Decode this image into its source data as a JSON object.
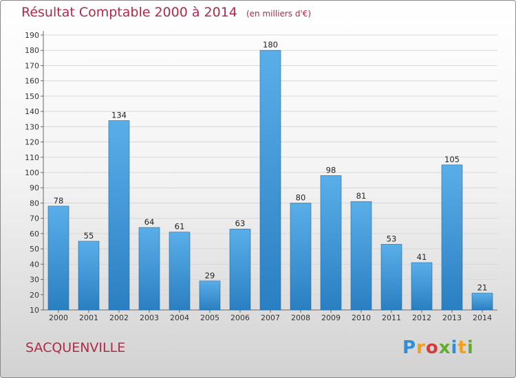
{
  "header": {
    "title": "Résultat Comptable 2000 à 2014",
    "subtitle": "(en milliers d'€)"
  },
  "footer": {
    "location": "SACQUENVILLE",
    "logo_letters": [
      {
        "ch": "P",
        "color": "#2f8fd6"
      },
      {
        "ch": "r",
        "color": "#f0a020"
      },
      {
        "ch": "o",
        "color": "#d43b3b"
      },
      {
        "ch": "x",
        "color": "#5fae2e"
      },
      {
        "ch": "i",
        "color": "#2f8fd6"
      },
      {
        "ch": "t",
        "color": "#f0a020"
      },
      {
        "ch": "i",
        "color": "#5fae2e"
      }
    ]
  },
  "colors": {
    "bar_top": "#5aaee8",
    "bar_bottom": "#2a7fc2",
    "title": "#b02a48"
  },
  "chart_data": {
    "type": "bar",
    "title": "Résultat Comptable 2000 à 2014",
    "subtitle": "(en milliers d'€)",
    "categories": [
      "2000",
      "2001",
      "2002",
      "2003",
      "2004",
      "2005",
      "2006",
      "2007",
      "2008",
      "2009",
      "2010",
      "2011",
      "2012",
      "2013",
      "2014"
    ],
    "values": [
      78,
      55,
      134,
      64,
      61,
      29,
      63,
      180,
      80,
      98,
      81,
      53,
      41,
      105,
      21
    ],
    "ylim": [
      10,
      190
    ],
    "yticks": [
      10,
      20,
      30,
      40,
      50,
      60,
      70,
      80,
      90,
      100,
      110,
      120,
      130,
      140,
      150,
      160,
      170,
      180,
      190
    ],
    "xlabel": "",
    "ylabel": "",
    "grid": true
  }
}
